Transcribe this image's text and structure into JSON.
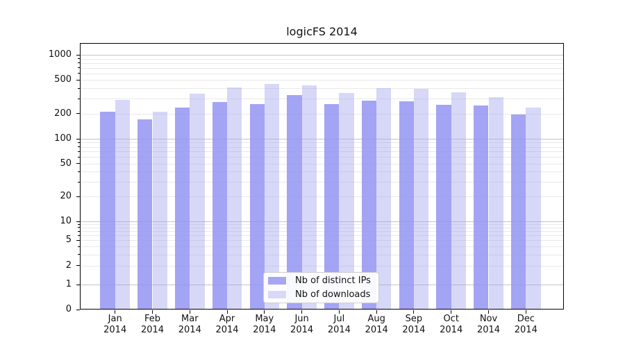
{
  "title": "logicFS 2014",
  "colors": {
    "distinct_ips": "#a6a6f2",
    "downloads": "#d9d9f7",
    "grid_major": "#c4c4c4",
    "grid_minor": "#e9e9e9",
    "axis": "#000000",
    "legend_border": "#cccccc"
  },
  "chart_data": {
    "type": "bar",
    "title": "logicFS 2014",
    "categories": [
      "Jan 2014",
      "Feb 2014",
      "Mar 2014",
      "Apr 2014",
      "May 2014",
      "Jun 2014",
      "Jul 2014",
      "Aug 2014",
      "Sep 2014",
      "Oct 2014",
      "Nov 2014",
      "Dec 2014"
    ],
    "months": [
      "Jan",
      "Feb",
      "Mar",
      "Apr",
      "May",
      "Jun",
      "Jul",
      "Aug",
      "Sep",
      "Oct",
      "Nov",
      "Dec"
    ],
    "year_label": "2014",
    "series": [
      {
        "name": "Nb of distinct IPs",
        "color_hex": "#a6a6f2",
        "values": [
          212,
          170,
          234,
          275,
          261,
          330,
          259,
          286,
          280,
          256,
          251,
          195
        ]
      },
      {
        "name": "Nb of downloads",
        "color_hex": "#d9d9f7",
        "values": [
          292,
          210,
          342,
          412,
          450,
          437,
          349,
          401,
          392,
          356,
          313,
          236
        ]
      }
    ],
    "yscale": "symlog",
    "y_ticks": [
      0,
      1,
      2,
      5,
      10,
      20,
      50,
      100,
      200,
      500,
      1000
    ],
    "ylim": [
      0,
      1380
    ],
    "grid": true,
    "legend_position": "lower center",
    "xlabel": "",
    "ylabel": ""
  }
}
